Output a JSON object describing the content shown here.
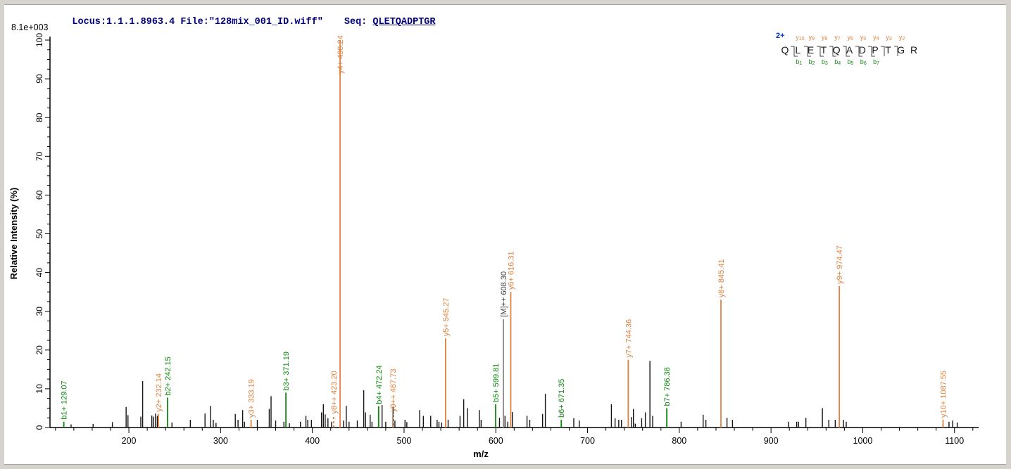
{
  "header": {
    "locus_text": "Locus:1.1.1.8963.4 File:\"128mix_001_ID.wiff\"",
    "seq_label": "Seq:",
    "seq_value": "QLETQADPTGR",
    "max_intensity_label": "8.1e+003"
  },
  "sequence_panel": {
    "charge": "2+",
    "residues": [
      "Q",
      "L",
      "E",
      "T",
      "Q",
      "A",
      "D",
      "P",
      "T",
      "G",
      "R"
    ],
    "y_ion_labels": [
      "y10",
      "y9",
      "y8",
      "y7",
      "y6",
      "y5",
      "y4",
      "y3",
      "y2"
    ],
    "b_ion_labels": [
      "b1",
      "b2",
      "b3",
      "b4",
      "b5",
      "b6",
      "b7"
    ]
  },
  "colors": {
    "header_text": "#00007f",
    "charge_text": "#0033cc",
    "y_ion": "#e0823f",
    "b_ion": "#118a11",
    "precursor_line": "#8c8c8c",
    "precursor_label": "#3f3f3f",
    "unassigned_peak": "#141414",
    "axis": "#000000",
    "background": "#ffffff",
    "frame": "#d6d3ce"
  },
  "chart_data": {
    "type": "bar",
    "subtype": "mass-spectrum-stick-plot",
    "title": "",
    "xlabel": "m/z",
    "ylabel": "Relative Intensity (%)",
    "xlim": [
      114,
      1126.3
    ],
    "ylim": [
      0,
      100
    ],
    "x_major_ticks": [
      200,
      300,
      400,
      500,
      600,
      700,
      800,
      900,
      1000,
      1100
    ],
    "x_minor_tick_step": 20,
    "x_minor_tick_start": 120,
    "x_minor_tick_end": 1120,
    "y_major_ticks": [
      0,
      10,
      20,
      30,
      40,
      50,
      60,
      70,
      80,
      90,
      100
    ],
    "y_minor_tick_step": 2.5,
    "grid": false,
    "legend_position": "none",
    "labeled_peaks": [
      {
        "label": "b1+ 129.07",
        "mz": 129.07,
        "intensity": 1.5,
        "ion": "b",
        "dashed": false
      },
      {
        "label": "y2+ 232.14",
        "mz": 232.14,
        "intensity": 3.5,
        "ion": "y",
        "dashed": false
      },
      {
        "label": "b2+ 242.15",
        "mz": 242.15,
        "intensity": 7.7,
        "ion": "b",
        "dashed": false
      },
      {
        "label": "y3+ 333.19",
        "mz": 333.19,
        "intensity": 2.0,
        "ion": "y",
        "dashed": false
      },
      {
        "label": "b3+ 371.19",
        "mz": 371.19,
        "intensity": 9.0,
        "ion": "b",
        "dashed": false
      },
      {
        "label": "y8++ 423.20",
        "mz": 423.2,
        "intensity": 3.0,
        "ion": "y",
        "dashed": true
      },
      {
        "label": "y4+ 430.24",
        "mz": 430.24,
        "intensity": 100.0,
        "ion": "y",
        "dashed": false
      },
      {
        "label": "b4+ 472.24",
        "mz": 472.24,
        "intensity": 5.5,
        "ion": "b",
        "dashed": false
      },
      {
        "label": "y9++ 487.73",
        "mz": 487.73,
        "intensity": 3.5,
        "ion": "y",
        "dashed": true
      },
      {
        "label": "y5+ 545.27",
        "mz": 545.27,
        "intensity": 23.0,
        "ion": "y",
        "dashed": false
      },
      {
        "label": "b5+ 599.81",
        "mz": 599.81,
        "intensity": 6.0,
        "ion": "b",
        "dashed": false
      },
      {
        "label": "[M]++ 608.30",
        "mz": 608.3,
        "intensity": 28.0,
        "ion": "precursor",
        "dashed": false
      },
      {
        "label": "y6+ 616.31",
        "mz": 616.31,
        "intensity": 35.0,
        "ion": "y",
        "dashed": false
      },
      {
        "label": "b6+ 671.35",
        "mz": 671.35,
        "intensity": 2.0,
        "ion": "b",
        "dashed": false
      },
      {
        "label": "y7+ 744.36",
        "mz": 744.36,
        "intensity": 17.5,
        "ion": "y",
        "dashed": false
      },
      {
        "label": "b7+ 786.38",
        "mz": 786.38,
        "intensity": 5.0,
        "ion": "b",
        "dashed": false
      },
      {
        "label": "y8+ 845.41",
        "mz": 845.41,
        "intensity": 33.0,
        "ion": "y",
        "dashed": false
      },
      {
        "label": "y9+ 974.47",
        "mz": 974.47,
        "intensity": 36.5,
        "ion": "y",
        "dashed": false
      },
      {
        "label": "y10+ 1087.55",
        "mz": 1087.55,
        "intensity": 2.0,
        "ion": "y",
        "dashed": false
      }
    ],
    "unlabeled_peaks": [
      [
        137,
        0.8
      ],
      [
        161,
        0.9
      ],
      [
        182,
        1.4
      ],
      [
        197,
        5.3
      ],
      [
        199,
        3.2
      ],
      [
        213,
        2.8
      ],
      [
        215,
        12.0
      ],
      [
        225,
        3.1
      ],
      [
        227,
        2.8
      ],
      [
        229,
        3.6
      ],
      [
        231,
        3.0
      ],
      [
        247,
        1.3
      ],
      [
        267,
        2.0
      ],
      [
        283,
        3.6
      ],
      [
        289,
        5.6
      ],
      [
        292,
        2.0
      ],
      [
        295,
        1.2
      ],
      [
        316,
        3.5
      ],
      [
        319,
        2.0
      ],
      [
        324,
        4.5
      ],
      [
        326,
        1.5
      ],
      [
        340,
        2.0
      ],
      [
        353,
        4.8
      ],
      [
        355,
        8.1
      ],
      [
        360,
        1.8
      ],
      [
        369,
        1.5
      ],
      [
        375,
        1.1
      ],
      [
        387,
        1.5
      ],
      [
        393,
        3.0
      ],
      [
        395,
        2.0
      ],
      [
        399,
        2.0
      ],
      [
        410,
        3.9
      ],
      [
        412,
        6.0
      ],
      [
        414,
        3.4
      ],
      [
        417,
        2.4
      ],
      [
        421,
        1.5
      ],
      [
        434,
        1.8
      ],
      [
        437,
        5.6
      ],
      [
        440,
        1.5
      ],
      [
        449,
        1.8
      ],
      [
        456,
        9.6
      ],
      [
        458,
        3.9
      ],
      [
        463,
        3.3
      ],
      [
        465,
        1.5
      ],
      [
        476,
        5.8
      ],
      [
        480,
        1.5
      ],
      [
        488,
        5.4
      ],
      [
        490,
        1.8
      ],
      [
        501,
        2.0
      ],
      [
        503,
        1.4
      ],
      [
        517,
        4.5
      ],
      [
        521,
        3.0
      ],
      [
        529,
        3.0
      ],
      [
        536,
        2.0
      ],
      [
        538,
        1.5
      ],
      [
        541,
        1.3
      ],
      [
        548,
        2.0
      ],
      [
        561,
        3.0
      ],
      [
        565,
        7.3
      ],
      [
        569,
        5.0
      ],
      [
        582,
        4.5
      ],
      [
        584,
        2.0
      ],
      [
        604,
        2.5
      ],
      [
        610,
        3.0
      ],
      [
        613,
        1.5
      ],
      [
        618,
        4.0
      ],
      [
        634,
        3.0
      ],
      [
        637,
        2.0
      ],
      [
        651,
        3.5
      ],
      [
        654,
        8.7
      ],
      [
        685,
        2.4
      ],
      [
        691,
        1.8
      ],
      [
        726,
        6.0
      ],
      [
        730,
        2.4
      ],
      [
        734,
        2.0
      ],
      [
        737,
        2.0
      ],
      [
        748,
        2.7
      ],
      [
        750,
        4.8
      ],
      [
        752,
        1.0
      ],
      [
        759,
        2.4
      ],
      [
        763,
        3.9
      ],
      [
        768,
        17.2
      ],
      [
        771,
        3.0
      ],
      [
        802,
        1.5
      ],
      [
        826,
        3.3
      ],
      [
        829,
        2.0
      ],
      [
        852,
        2.5
      ],
      [
        858,
        2.0
      ],
      [
        919,
        1.5
      ],
      [
        928,
        1.5
      ],
      [
        930,
        1.5
      ],
      [
        938,
        2.5
      ],
      [
        956,
        5.0
      ],
      [
        963,
        2.0
      ],
      [
        970,
        2.0
      ],
      [
        979,
        2.0
      ],
      [
        982,
        1.5
      ],
      [
        1094,
        1.5
      ],
      [
        1098,
        1.8
      ],
      [
        1103,
        1.3
      ]
    ]
  }
}
